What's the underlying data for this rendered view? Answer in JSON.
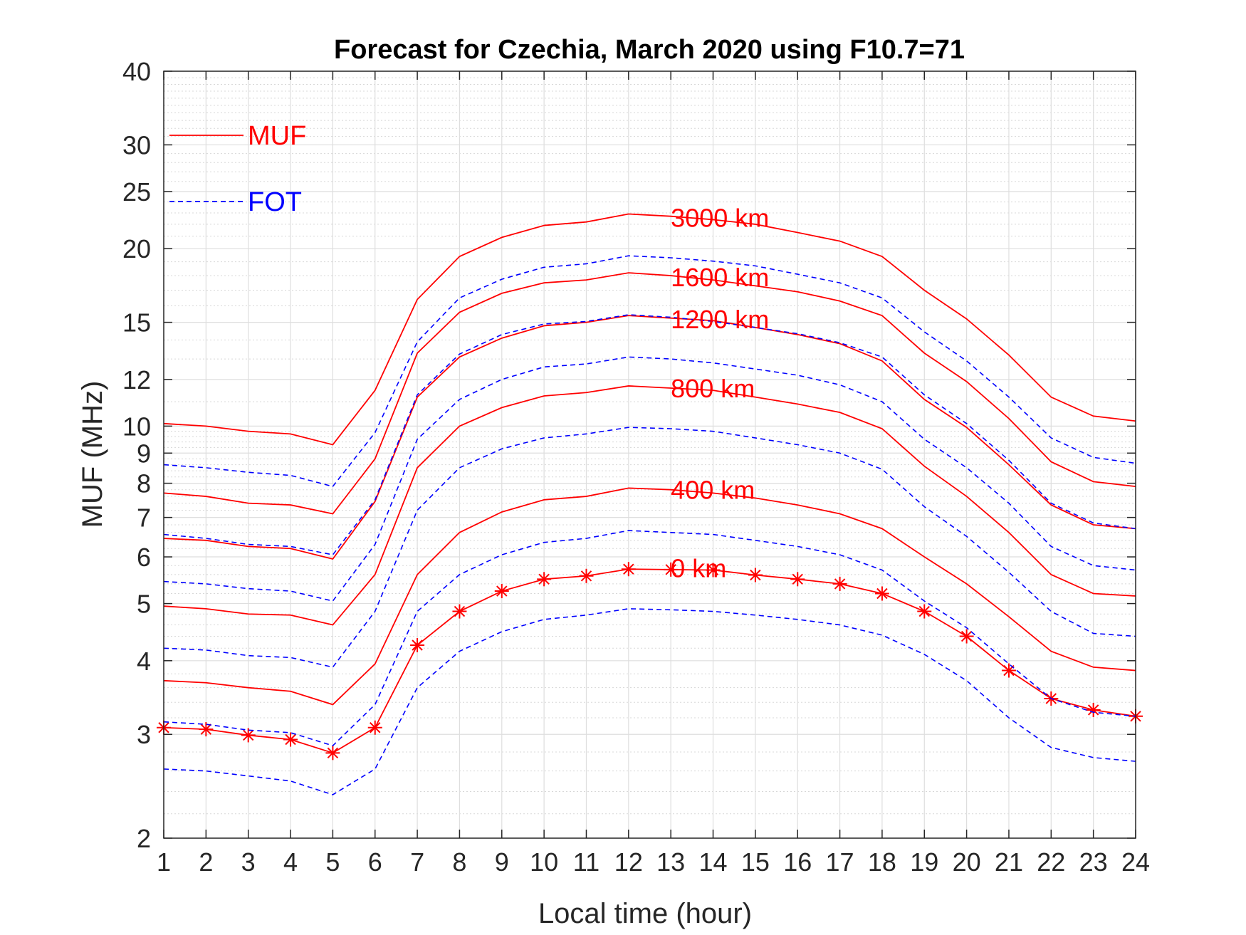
{
  "chart_data": {
    "type": "line",
    "title": "Forecast for Czechia, March 2020 using F10.7=71",
    "xlabel": "Local time (hour)",
    "ylabel": "MUF (MHz)",
    "x_scale": "linear",
    "y_scale": "log",
    "xlim": [
      1,
      24
    ],
    "ylim": [
      2,
      40
    ],
    "grid": true,
    "minor_grid": true,
    "x_ticks": [
      "1",
      "2",
      "3",
      "4",
      "5",
      "6",
      "7",
      "8",
      "9",
      "10",
      "11",
      "12",
      "13",
      "14",
      "15",
      "16",
      "17",
      "18",
      "19",
      "20",
      "21",
      "22",
      "23",
      "24"
    ],
    "y_ticks": [
      {
        "value": 2,
        "label": "2"
      },
      {
        "value": 3,
        "label": "3"
      },
      {
        "value": 4,
        "label": "4"
      },
      {
        "value": 5,
        "label": "5"
      },
      {
        "value": 6,
        "label": "6"
      },
      {
        "value": 7,
        "label": "7"
      },
      {
        "value": 8,
        "label": "8"
      },
      {
        "value": 9,
        "label": "9"
      },
      {
        "value": 10,
        "label": "10"
      },
      {
        "value": 12,
        "label": "12"
      },
      {
        "value": 15,
        "label": "15"
      },
      {
        "value": 20,
        "label": "20"
      },
      {
        "value": 25,
        "label": "25"
      },
      {
        "value": 30,
        "label": "30"
      },
      {
        "value": 40,
        "label": "40"
      }
    ],
    "legend": {
      "placement": "top-left",
      "entries": [
        {
          "label": "MUF",
          "color": "#ff0000",
          "style": "solid"
        },
        {
          "label": "FOT",
          "color": "#0000ff",
          "style": "dashed"
        }
      ]
    },
    "x": [
      1,
      2,
      3,
      4,
      5,
      6,
      7,
      8,
      9,
      10,
      11,
      12,
      13,
      14,
      15,
      16,
      17,
      18,
      19,
      20,
      21,
      22,
      23,
      24
    ],
    "series": [
      {
        "kind": "MUF",
        "label": "3000 km",
        "label_at": {
          "x": 13,
          "y": 22.6
        },
        "color": "#ff0000",
        "style": "solid",
        "values": [
          10.1,
          10.0,
          9.8,
          9.7,
          9.3,
          11.5,
          16.4,
          19.4,
          20.9,
          21.9,
          22.2,
          22.9,
          22.7,
          22.4,
          22.0,
          21.3,
          20.6,
          19.4,
          17.0,
          15.2,
          13.2,
          11.2,
          10.4,
          10.2
        ],
        "markers": false
      },
      {
        "kind": "MUF",
        "label": "1600 km",
        "label_at": {
          "x": 13,
          "y": 17.9
        },
        "color": "#ff0000",
        "style": "solid",
        "values": [
          7.7,
          7.6,
          7.4,
          7.35,
          7.1,
          8.8,
          13.3,
          15.6,
          16.8,
          17.5,
          17.7,
          18.2,
          18.0,
          17.7,
          17.3,
          16.9,
          16.3,
          15.4,
          13.3,
          11.9,
          10.3,
          8.7,
          8.05,
          7.9
        ],
        "markers": false
      },
      {
        "kind": "MUF",
        "label": "1200 km",
        "label_at": {
          "x": 13,
          "y": 15.2
        },
        "color": "#ff0000",
        "style": "solid",
        "values": [
          6.45,
          6.4,
          6.25,
          6.2,
          5.95,
          7.45,
          11.2,
          13.1,
          14.1,
          14.8,
          15.0,
          15.4,
          15.25,
          15.1,
          14.7,
          14.3,
          13.8,
          12.9,
          11.1,
          9.95,
          8.6,
          7.35,
          6.8,
          6.7
        ],
        "markers": false
      },
      {
        "kind": "MUF",
        "label": "800 km",
        "label_at": {
          "x": 13,
          "y": 11.6
        },
        "color": "#ff0000",
        "style": "solid",
        "values": [
          4.95,
          4.9,
          4.8,
          4.78,
          4.6,
          5.6,
          8.5,
          10.0,
          10.75,
          11.25,
          11.4,
          11.7,
          11.6,
          11.5,
          11.2,
          10.9,
          10.55,
          9.9,
          8.55,
          7.6,
          6.6,
          5.6,
          5.2,
          5.15
        ],
        "markers": false
      },
      {
        "kind": "MUF",
        "label": "400 km",
        "label_at": {
          "x": 13,
          "y": 7.8
        },
        "color": "#ff0000",
        "style": "solid",
        "values": [
          3.7,
          3.67,
          3.6,
          3.55,
          3.37,
          3.95,
          5.6,
          6.6,
          7.15,
          7.5,
          7.6,
          7.85,
          7.8,
          7.7,
          7.55,
          7.35,
          7.1,
          6.7,
          6.0,
          5.4,
          4.75,
          4.15,
          3.9,
          3.85
        ],
        "markers": false
      },
      {
        "kind": "MUF",
        "label": "0 km",
        "label_at": {
          "x": 13,
          "y": 5.75
        },
        "color": "#ff0000",
        "style": "solid",
        "values": [
          3.08,
          3.06,
          2.99,
          2.94,
          2.79,
          3.08,
          4.25,
          4.85,
          5.25,
          5.5,
          5.57,
          5.72,
          5.71,
          5.7,
          5.59,
          5.5,
          5.4,
          5.2,
          4.85,
          4.4,
          3.85,
          3.45,
          3.3,
          3.22
        ],
        "markers": true
      },
      {
        "kind": "FOT",
        "label": "",
        "color": "#0000ff",
        "style": "dashed",
        "values": [
          8.6,
          8.5,
          8.35,
          8.25,
          7.9,
          9.75,
          13.9,
          16.5,
          17.75,
          18.6,
          18.85,
          19.45,
          19.3,
          19.05,
          18.7,
          18.1,
          17.5,
          16.5,
          14.45,
          12.9,
          11.2,
          9.55,
          8.85,
          8.65
        ],
        "markers": false
      },
      {
        "kind": "FOT",
        "label": "",
        "color": "#0000ff",
        "style": "dashed",
        "values": [
          6.55,
          6.45,
          6.3,
          6.25,
          6.05,
          7.5,
          11.3,
          13.25,
          14.3,
          14.9,
          15.05,
          15.45,
          15.3,
          15.05,
          14.7,
          14.35,
          13.85,
          13.1,
          11.3,
          10.1,
          8.75,
          7.4,
          6.85,
          6.7
        ],
        "markers": false
      },
      {
        "kind": "FOT",
        "label": "",
        "color": "#0000ff",
        "style": "dashed",
        "values": [
          5.45,
          5.4,
          5.3,
          5.25,
          5.05,
          6.3,
          9.5,
          11.1,
          12.0,
          12.6,
          12.75,
          13.1,
          13.0,
          12.8,
          12.5,
          12.2,
          11.75,
          11.0,
          9.5,
          8.5,
          7.4,
          6.25,
          5.8,
          5.7
        ],
        "markers": false
      },
      {
        "kind": "FOT",
        "label": "",
        "color": "#0000ff",
        "style": "dashed",
        "values": [
          4.2,
          4.17,
          4.08,
          4.05,
          3.9,
          4.85,
          7.2,
          8.5,
          9.15,
          9.55,
          9.7,
          9.95,
          9.9,
          9.8,
          9.55,
          9.3,
          9.0,
          8.45,
          7.3,
          6.5,
          5.65,
          4.85,
          4.45,
          4.4
        ],
        "markers": false
      },
      {
        "kind": "FOT",
        "label": "",
        "color": "#0000ff",
        "style": "dashed",
        "values": [
          3.15,
          3.12,
          3.05,
          3.02,
          2.87,
          3.37,
          4.85,
          5.6,
          6.05,
          6.35,
          6.45,
          6.65,
          6.6,
          6.55,
          6.4,
          6.25,
          6.05,
          5.7,
          5.05,
          4.55,
          3.95,
          3.45,
          3.27,
          3.22
        ],
        "markers": false
      },
      {
        "kind": "FOT",
        "label": "",
        "color": "#0000ff",
        "style": "dashed",
        "values": [
          2.62,
          2.6,
          2.55,
          2.5,
          2.37,
          2.62,
          3.6,
          4.15,
          4.48,
          4.7,
          4.78,
          4.9,
          4.88,
          4.85,
          4.78,
          4.7,
          4.6,
          4.42,
          4.1,
          3.7,
          3.2,
          2.85,
          2.74,
          2.7
        ],
        "markers": false
      }
    ]
  }
}
